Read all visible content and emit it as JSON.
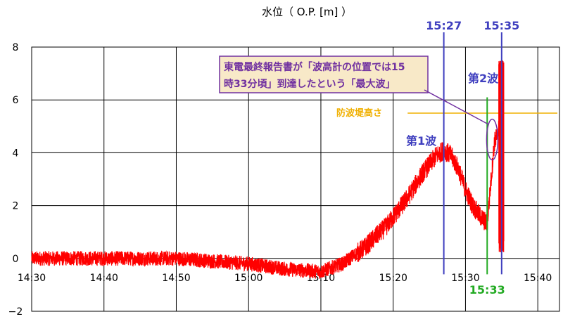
{
  "chart_data": {
    "type": "line",
    "title": "水位（ O.P. [m] ）",
    "xlabel": "",
    "ylabel": "",
    "x_ticks": [
      "14:30",
      "14:40",
      "14:50",
      "15:00",
      "15:10",
      "15:20",
      "15:30",
      "15:40"
    ],
    "y_ticks": [
      "8",
      "6",
      "4",
      "2",
      "0",
      "−2"
    ],
    "xlim_minutes": [
      870,
      943
    ],
    "ylim": [
      -2,
      8
    ],
    "grid": true,
    "series": [
      {
        "color": "#FF0000",
        "time_minutes": [
          870,
          880,
          890,
          900,
          905,
          910,
          913,
          916,
          919,
          922,
          924,
          926,
          927,
          928,
          929,
          930,
          931,
          932,
          933,
          934,
          934.5,
          935
        ],
        "values": [
          0,
          0,
          0,
          -0.2,
          -0.4,
          -0.5,
          -0.2,
          0.4,
          1.2,
          2.3,
          3.2,
          3.9,
          4.1,
          3.9,
          3.4,
          2.6,
          2.0,
          1.6,
          1.3,
          4.4,
          4.7,
          7.3
        ]
      }
    ],
    "markers": [
      {
        "label": "15:27",
        "minute": 927,
        "color": "#3F3FBF"
      },
      {
        "label": "15:35",
        "minute": 935,
        "color": "#3F3FBF"
      },
      {
        "label": "15:33",
        "minute": 933,
        "color": "#22AA22"
      }
    ],
    "seawall": {
      "label": "防波堤高さ",
      "value": 5.5,
      "color": "#F0B000"
    },
    "wave_labels": [
      {
        "text": "第1波",
        "color": "#3F3FBF"
      },
      {
        "text": "第2波",
        "color": "#3F3FBF"
      }
    ],
    "callout": {
      "line1": "東電最終報告書が「波高計の位置では15",
      "line2": "時33分頃」到達したという「最大波」",
      "border_color": "#7030A0",
      "bg_color": "#F8E9C8"
    }
  }
}
